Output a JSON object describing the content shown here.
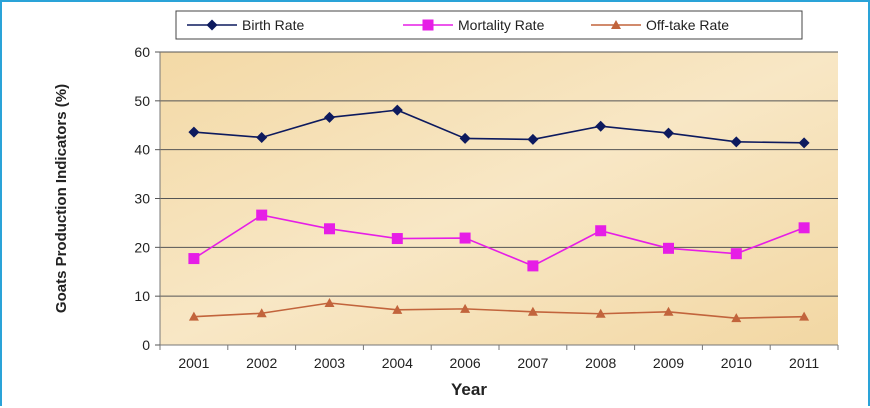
{
  "chart_data": {
    "type": "line",
    "categories": [
      "2001",
      "2002",
      "2003",
      "2004",
      "2006",
      "2007",
      "2008",
      "2009",
      "2010",
      "2011"
    ],
    "series": [
      {
        "name": "Birth Rate",
        "color": "#0d1a5e",
        "marker": "diamond",
        "values": [
          43.6,
          42.5,
          46.6,
          48.1,
          42.3,
          42.1,
          44.8,
          43.4,
          41.6,
          41.4
        ]
      },
      {
        "name": "Mortality Rate",
        "color": "#e61ee6",
        "marker": "square",
        "values": [
          17.7,
          26.6,
          23.8,
          21.8,
          21.9,
          16.2,
          23.4,
          19.8,
          18.7,
          24.0
        ]
      },
      {
        "name": "Off-take Rate",
        "color": "#c2643c",
        "marker": "triangle",
        "values": [
          5.8,
          6.5,
          8.6,
          7.2,
          7.4,
          6.8,
          6.4,
          6.8,
          5.5,
          5.8
        ]
      }
    ],
    "xlabel": "Year",
    "ylabel": "Goats Production Indicators (%)",
    "ylim": [
      0,
      60
    ],
    "yticks": [
      "0",
      "10",
      "20",
      "30",
      "40",
      "50",
      "60"
    ],
    "grid": true,
    "legend_position": "top",
    "plot_background": "#f6dfb4"
  }
}
